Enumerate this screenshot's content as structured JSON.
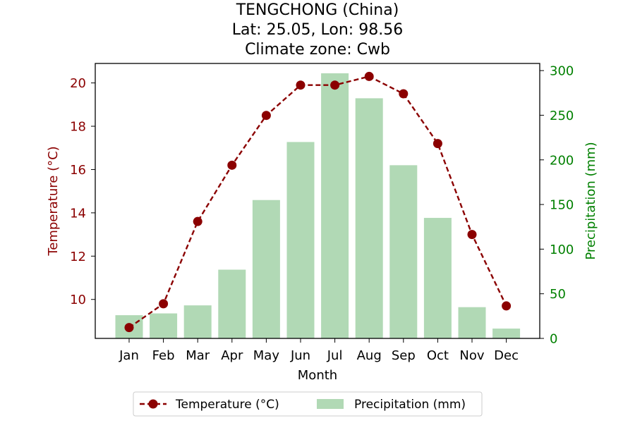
{
  "chart_data": {
    "type": "bar",
    "title_lines": [
      "TENGCHONG (China)",
      "Lat: 25.05, Lon: 98.56",
      "Climate zone: Cwb"
    ],
    "xlabel": "Month",
    "ylabel_left": "Temperature (°C)",
    "ylabel_right": "Precipitation (mm)",
    "categories": [
      "Jan",
      "Feb",
      "Mar",
      "Apr",
      "May",
      "Jun",
      "Jul",
      "Aug",
      "Sep",
      "Oct",
      "Nov",
      "Dec"
    ],
    "temperature": {
      "name": "Temperature (°C)",
      "values": [
        8.7,
        9.8,
        13.6,
        16.2,
        18.5,
        19.9,
        19.9,
        20.3,
        19.5,
        17.2,
        13.0,
        9.7
      ],
      "ylim": [
        8.2,
        20.9
      ],
      "ticks": [
        10,
        12,
        14,
        16,
        18,
        20
      ]
    },
    "precipitation": {
      "name": "Precipitation (mm)",
      "values": [
        26,
        28,
        37,
        77,
        155,
        220,
        297,
        269,
        194,
        135,
        35,
        11
      ],
      "ylim": [
        0,
        308
      ],
      "ticks": [
        0,
        50,
        100,
        150,
        200,
        250,
        300
      ]
    },
    "legend_position": "bottom-center",
    "grid": false,
    "colors": {
      "temperature": "#8b0000",
      "precipitation": "#b1d9b5",
      "left_axis": "#8b0000",
      "right_axis": "#008000"
    }
  }
}
